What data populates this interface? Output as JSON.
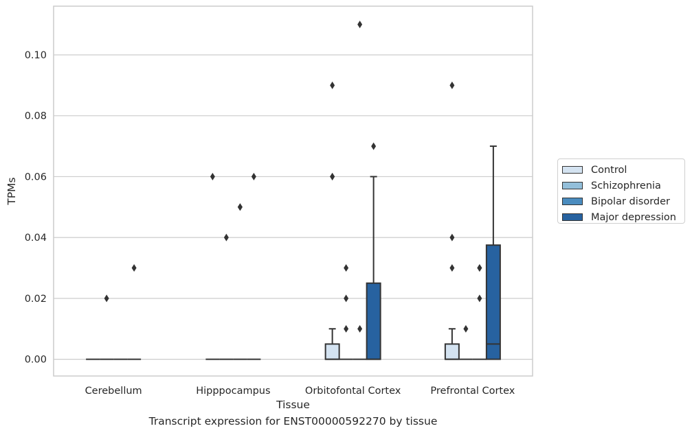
{
  "caption": "Transcript expression for ENST00000592270 by tissue",
  "colors": {
    "Control": "#d4e3f1",
    "Schizophrenia": "#93bfda",
    "Bipolar disorder": "#4a8cbf",
    "Major depression": "#2762a0",
    "line": "#333333",
    "grid": "#cccccc",
    "spine": "#cccccc"
  },
  "chart_data": {
    "type": "box",
    "xlabel": "Tissue",
    "ylabel": "TPMs",
    "ylim": [
      -0.0055,
      0.116
    ],
    "yticks": [
      "0.00",
      "0.02",
      "0.04",
      "0.06",
      "0.08",
      "0.10"
    ],
    "ytick_values": [
      0,
      0.02,
      0.04,
      0.06,
      0.08,
      0.1
    ],
    "grid": "horizontal",
    "legend_position": "right, outside",
    "categories": [
      "Cerebellum",
      "Hipppocampus",
      "Orbitofontal Cortex",
      "Prefrontal Cortex"
    ],
    "series": [
      {
        "name": "Control",
        "boxes": [
          {
            "q1": 0,
            "median": 0,
            "q3": 0,
            "whislo": 0,
            "whishi": 0,
            "fliers": []
          },
          {
            "q1": 0,
            "median": 0,
            "q3": 0,
            "whislo": 0,
            "whishi": 0,
            "fliers": [
              0.06
            ]
          },
          {
            "q1": 0,
            "median": 0,
            "q3": 0.005,
            "whislo": 0,
            "whishi": 0.01,
            "fliers": [
              0.06,
              0.06,
              0.09
            ]
          },
          {
            "q1": 0,
            "median": 0,
            "q3": 0.005,
            "whislo": 0,
            "whishi": 0.01,
            "fliers": [
              0.03,
              0.04,
              0.09
            ]
          }
        ]
      },
      {
        "name": "Schizophrenia",
        "boxes": [
          {
            "q1": 0,
            "median": 0,
            "q3": 0,
            "whislo": 0,
            "whishi": 0,
            "fliers": [
              0.02
            ]
          },
          {
            "q1": 0,
            "median": 0,
            "q3": 0,
            "whislo": 0,
            "whishi": 0,
            "fliers": [
              0.04
            ]
          },
          {
            "q1": 0,
            "median": 0,
            "q3": 0,
            "whislo": 0,
            "whishi": 0,
            "fliers": [
              0.01,
              0.02,
              0.03
            ]
          },
          {
            "q1": 0,
            "median": 0,
            "q3": 0,
            "whislo": 0,
            "whishi": 0,
            "fliers": [
              0.01
            ]
          }
        ]
      },
      {
        "name": "Bipolar disorder",
        "boxes": [
          {
            "q1": 0,
            "median": 0,
            "q3": 0,
            "whislo": 0,
            "whishi": 0,
            "fliers": []
          },
          {
            "q1": 0,
            "median": 0,
            "q3": 0,
            "whislo": 0,
            "whishi": 0,
            "fliers": [
              0.05,
              0.05
            ]
          },
          {
            "q1": 0,
            "median": 0,
            "q3": 0,
            "whislo": 0,
            "whishi": 0,
            "fliers": [
              0.01,
              0.11
            ]
          },
          {
            "q1": 0,
            "median": 0,
            "q3": 0,
            "whislo": 0,
            "whishi": 0,
            "fliers": [
              0.02,
              0.03,
              0.03
            ]
          }
        ]
      },
      {
        "name": "Major depression",
        "boxes": [
          {
            "q1": 0,
            "median": 0,
            "q3": 0,
            "whislo": 0,
            "whishi": 0,
            "fliers": [
              0.03
            ]
          },
          {
            "q1": 0,
            "median": 0,
            "q3": 0,
            "whislo": 0,
            "whishi": 0,
            "fliers": [
              0.06
            ]
          },
          {
            "q1": 0,
            "median": 0,
            "q3": 0.025,
            "whislo": 0,
            "whishi": 0.06,
            "fliers": [
              0.07
            ]
          },
          {
            "q1": 0,
            "median": 0.005,
            "q3": 0.0375,
            "whislo": 0,
            "whishi": 0.07,
            "fliers": []
          }
        ]
      }
    ]
  }
}
